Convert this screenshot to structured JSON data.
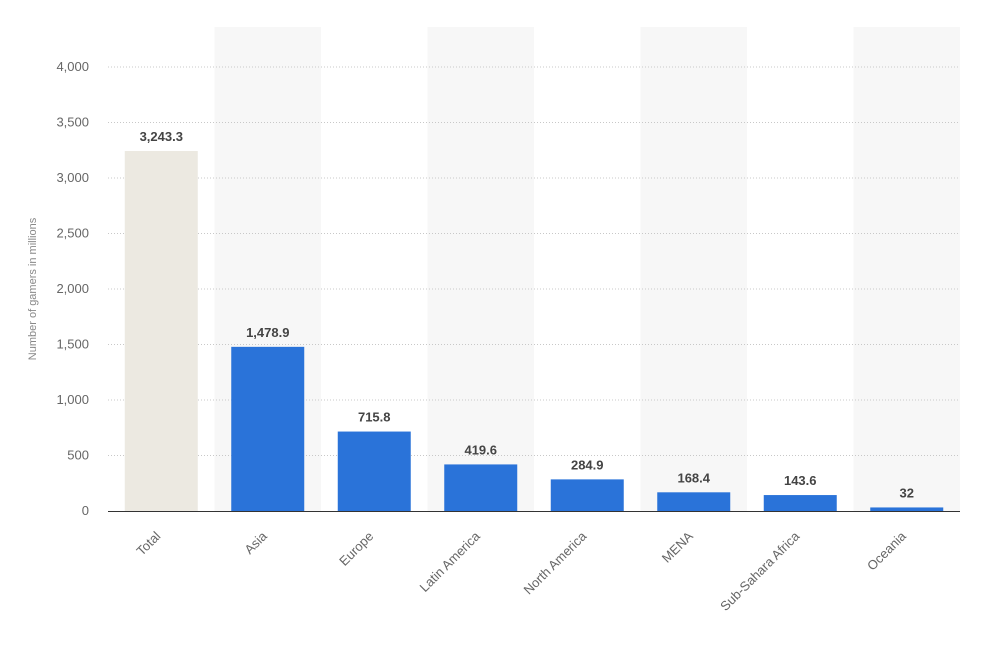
{
  "chart_data": {
    "type": "bar",
    "title": "",
    "xlabel": "",
    "ylabel": "Number of gamers in millions",
    "ylim": [
      0,
      4000
    ],
    "yticks": [
      0,
      500,
      1000,
      1500,
      2000,
      2500,
      3000,
      3500,
      4000
    ],
    "ytick_labels": [
      "0",
      "500",
      "1,000",
      "1,500",
      "2,000",
      "2,500",
      "3,000",
      "3,500",
      "4,000"
    ],
    "grid": true,
    "categories": [
      "Total",
      "Asia",
      "Europe",
      "Latin America",
      "North America",
      "MENA",
      "Sub-Sahara Africa",
      "Oceania"
    ],
    "values": [
      3243.3,
      1478.9,
      715.8,
      419.6,
      284.9,
      168.4,
      143.6,
      32
    ],
    "value_labels": [
      "3,243.3",
      "1,478.9",
      "715.8",
      "419.6",
      "284.9",
      "168.4",
      "143.6",
      "32"
    ],
    "colors": {
      "total_bar": "#ece9e1",
      "bar": "#2a73d9",
      "band": "#f7f7f7",
      "grid": "#c8c8c8",
      "axis": "#333333"
    }
  }
}
